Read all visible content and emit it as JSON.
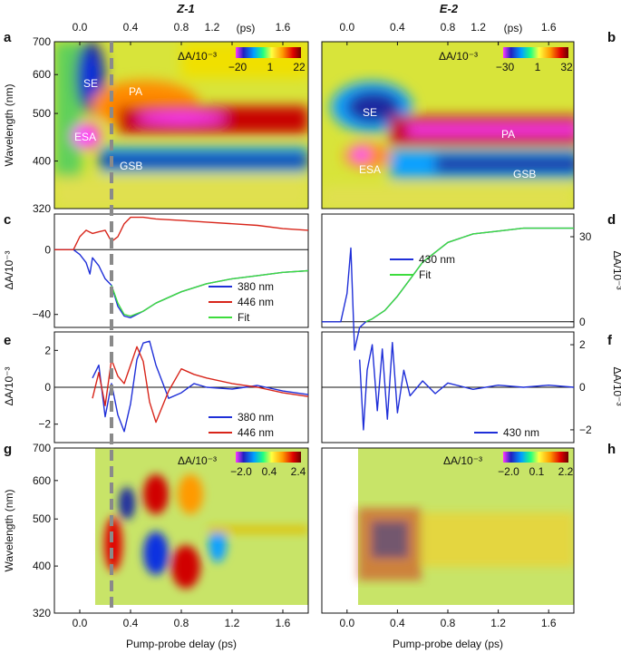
{
  "figure": {
    "title_left": "Z-1",
    "title_right": "E-2",
    "top_axis_unit": "(ps)",
    "xlabel": "Pump-probe delay (ps)",
    "wavelength_label": "Wavelength (nm)",
    "dA_label": "ΔA/10⁻³",
    "panel_labels": [
      "a",
      "b",
      "c",
      "d",
      "e",
      "f",
      "g",
      "h"
    ]
  },
  "chart_data": [
    {
      "id": "a",
      "type": "heatmap",
      "title": "Z-1",
      "xlabel": "",
      "ylabel": "Wavelength (nm)",
      "xlim": [
        -0.2,
        1.8
      ],
      "ylim": [
        320,
        700
      ],
      "x_ticks": [
        "0.0",
        "0.4",
        "0.8",
        "1.2",
        "1.6"
      ],
      "y_ticks": [
        "320",
        "400",
        "500",
        "600",
        "700"
      ],
      "colorbar": {
        "label": "ΔA/10⁻³",
        "ticks": [
          "−20",
          "1",
          "22"
        ],
        "min": -20,
        "max": 22
      },
      "annotations": [
        "SE",
        "PA",
        "ESA",
        "GSB"
      ]
    },
    {
      "id": "b",
      "type": "heatmap",
      "title": "E-2",
      "xlim": [
        -0.2,
        1.8
      ],
      "ylim": [
        320,
        700
      ],
      "x_ticks": [
        "0.0",
        "0.4",
        "0.8",
        "1.2",
        "1.6"
      ],
      "colorbar": {
        "label": "ΔA/10⁻³",
        "ticks": [
          "−30",
          "1",
          "32"
        ],
        "min": -30,
        "max": 32
      },
      "annotations": [
        "SE",
        "PA",
        "ESA",
        "GSB"
      ]
    },
    {
      "id": "c",
      "type": "line",
      "ylabel": "ΔA/10⁻³",
      "xlim": [
        -0.2,
        1.8
      ],
      "ylim": [
        -48,
        22
      ],
      "y_ticks": [
        "−40",
        "0"
      ],
      "series": [
        {
          "name": "380 nm",
          "color": "#1f2fd8",
          "x": [
            -0.2,
            -0.05,
            0.0,
            0.05,
            0.08,
            0.1,
            0.15,
            0.2,
            0.25,
            0.3,
            0.35,
            0.4,
            0.5,
            0.6,
            0.8,
            1.0,
            1.2,
            1.4,
            1.6,
            1.8
          ],
          "y": [
            0,
            0,
            -3,
            -8,
            -15,
            -5,
            -10,
            -18,
            -22,
            -35,
            -41,
            -42,
            -38,
            -33,
            -26,
            -21,
            -18,
            -16,
            -14,
            -13
          ]
        },
        {
          "name": "446 nm",
          "color": "#d8251a",
          "x": [
            -0.2,
            -0.05,
            0.0,
            0.05,
            0.1,
            0.15,
            0.2,
            0.25,
            0.3,
            0.35,
            0.4,
            0.5,
            0.6,
            0.8,
            1.0,
            1.2,
            1.4,
            1.6,
            1.8
          ],
          "y": [
            0,
            0,
            8,
            12,
            10,
            11,
            12,
            5,
            8,
            16,
            20,
            20,
            19,
            18,
            17,
            16,
            15,
            13,
            12
          ]
        },
        {
          "name": "Fit",
          "color": "#3ddc3d",
          "x": [
            0.25,
            0.3,
            0.35,
            0.4,
            0.5,
            0.6,
            0.8,
            1.0,
            1.2,
            1.4,
            1.6,
            1.8
          ],
          "y": [
            -22,
            -33,
            -40,
            -41,
            -38,
            -33,
            -26,
            -21,
            -18,
            -16,
            -14,
            -13
          ]
        }
      ],
      "legend": "bottom-right"
    },
    {
      "id": "d",
      "type": "line",
      "ylabel": "ΔA/10⁻³",
      "xlim": [
        -0.2,
        1.8
      ],
      "ylim": [
        -2,
        38
      ],
      "y_ticks": [
        "0",
        "30"
      ],
      "series": [
        {
          "name": "430 nm",
          "color": "#1f2fd8",
          "x": [
            -0.2,
            -0.05,
            0.0,
            0.03,
            0.06,
            0.1,
            0.15,
            0.2,
            0.3,
            0.4,
            0.5,
            0.6,
            0.8,
            1.0,
            1.2,
            1.4,
            1.6,
            1.8
          ],
          "y": [
            0,
            0,
            10,
            26,
            -10,
            -2,
            0,
            1,
            4,
            9,
            15,
            21,
            28,
            31,
            32,
            33,
            33,
            33
          ]
        },
        {
          "name": "Fit",
          "color": "#3ddc3d",
          "x": [
            0.15,
            0.2,
            0.3,
            0.4,
            0.5,
            0.6,
            0.8,
            1.0,
            1.2,
            1.4,
            1.6,
            1.8
          ],
          "y": [
            0,
            1,
            4,
            9,
            15,
            21,
            28,
            31,
            32,
            33,
            33,
            33
          ]
        }
      ],
      "legend": "center"
    },
    {
      "id": "e",
      "type": "line",
      "ylabel": "ΔA/10⁻³",
      "xlim": [
        -0.2,
        1.8
      ],
      "ylim": [
        -3,
        3
      ],
      "y_ticks": [
        "−2",
        "0",
        "2"
      ],
      "series": [
        {
          "name": "380 nm",
          "color": "#1f2fd8",
          "x": [
            0.1,
            0.15,
            0.2,
            0.25,
            0.3,
            0.35,
            0.4,
            0.45,
            0.5,
            0.55,
            0.6,
            0.7,
            0.8,
            0.9,
            1.0,
            1.2,
            1.4,
            1.6,
            1.8
          ],
          "y": [
            0.5,
            1.2,
            -1.6,
            0.2,
            -1.5,
            -2.4,
            -0.9,
            1.5,
            2.4,
            2.5,
            1.2,
            -0.6,
            -0.3,
            0.2,
            0,
            -0.1,
            0.1,
            -0.2,
            -0.4
          ]
        },
        {
          "name": "446 nm",
          "color": "#d8251a",
          "x": [
            0.1,
            0.15,
            0.2,
            0.25,
            0.3,
            0.35,
            0.4,
            0.45,
            0.5,
            0.55,
            0.6,
            0.7,
            0.8,
            0.9,
            1.0,
            1.2,
            1.4,
            1.6,
            1.8
          ],
          "y": [
            -0.6,
            0.8,
            -1.0,
            1.5,
            0.6,
            0.2,
            1.2,
            2.2,
            1.4,
            -0.8,
            -1.9,
            -0.2,
            1.0,
            0.7,
            0.5,
            0.2,
            0,
            -0.3,
            -0.5
          ]
        }
      ],
      "legend": "bottom-right"
    },
    {
      "id": "f",
      "type": "line",
      "ylabel": "ΔA/10⁻³",
      "xlim": [
        -0.2,
        1.8
      ],
      "ylim": [
        -2.6,
        2.6
      ],
      "y_ticks": [
        "−2",
        "0",
        "2"
      ],
      "series": [
        {
          "name": "430 nm",
          "color": "#1f2fd8",
          "x": [
            0.1,
            0.13,
            0.16,
            0.2,
            0.24,
            0.28,
            0.32,
            0.36,
            0.4,
            0.45,
            0.5,
            0.6,
            0.7,
            0.8,
            1.0,
            1.2,
            1.4,
            1.6,
            1.8
          ],
          "y": [
            1.3,
            -2.0,
            0.8,
            2.0,
            -1.1,
            1.8,
            -1.5,
            2.1,
            -1.2,
            0.8,
            -0.4,
            0.3,
            -0.3,
            0.2,
            -0.1,
            0.1,
            0,
            0.1,
            0
          ]
        }
      ],
      "legend": "bottom-right"
    },
    {
      "id": "g",
      "type": "heatmap",
      "xlabel": "Pump-probe delay (ps)",
      "ylabel": "Wavelength (nm)",
      "xlim": [
        -0.2,
        1.8
      ],
      "ylim": [
        320,
        700
      ],
      "x_ticks": [
        "0.0",
        "0.4",
        "0.8",
        "1.2",
        "1.6"
      ],
      "y_ticks": [
        "320",
        "400",
        "500",
        "600",
        "700"
      ],
      "colorbar": {
        "label": "ΔA/10⁻³",
        "ticks": [
          "−2.0",
          "0.4",
          "2.4"
        ],
        "min": -2.0,
        "max": 2.4
      }
    },
    {
      "id": "h",
      "type": "heatmap",
      "xlabel": "Pump-probe delay (ps)",
      "xlim": [
        -0.2,
        1.8
      ],
      "ylim": [
        320,
        700
      ],
      "x_ticks": [
        "0.0",
        "0.4",
        "0.8",
        "1.2",
        "1.6"
      ],
      "colorbar": {
        "label": "ΔA/10⁻³",
        "ticks": [
          "−2.0",
          "0.1",
          "2.2"
        ],
        "min": -2.0,
        "max": 2.2
      }
    }
  ],
  "vline_delay_ps": 0.25
}
